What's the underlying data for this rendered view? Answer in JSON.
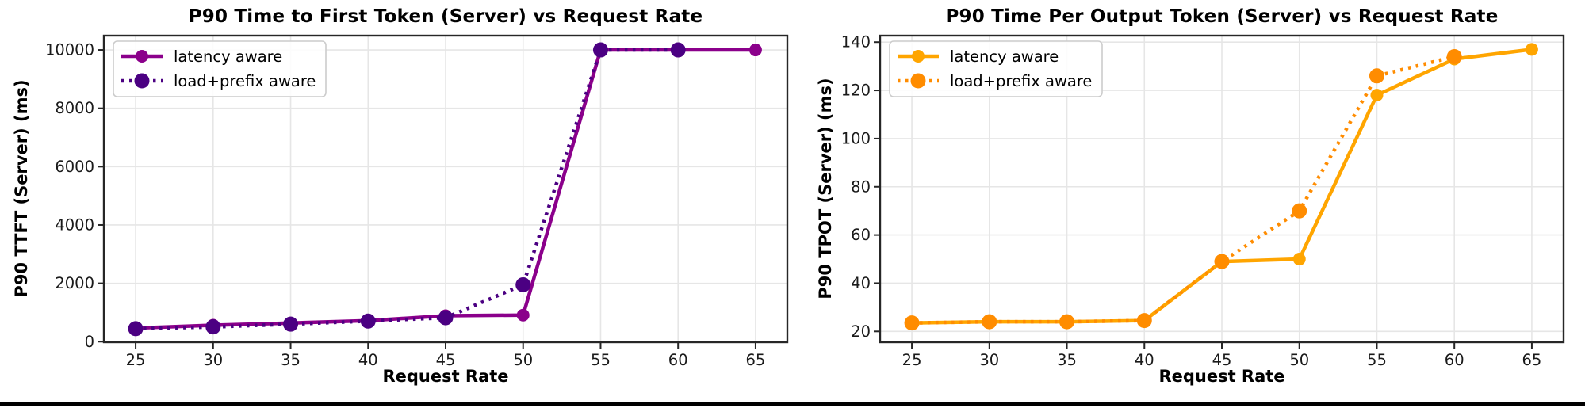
{
  "page": {
    "background": "#ffffff",
    "bottom_rule_color": "#000000"
  },
  "chart_data": [
    {
      "type": "line",
      "title": "P90 Time to First Token (Server) vs Request Rate",
      "xlabel": "Request Rate",
      "ylabel": "P90 TTFT (Server) (ms)",
      "x_ticks": [
        25,
        30,
        35,
        40,
        45,
        50,
        55,
        60,
        65
      ],
      "y_ticks": [
        0,
        2000,
        4000,
        6000,
        8000,
        10000
      ],
      "xlim": [
        22.95,
        67.05
      ],
      "ylim": [
        -20,
        10490
      ],
      "grid": true,
      "legend_position": "upper-left",
      "series": [
        {
          "name": "latency aware",
          "style": "solid",
          "marker": "circle",
          "color": "#8B008B",
          "x": [
            25,
            30,
            35,
            40,
            45,
            50,
            55,
            60,
            65
          ],
          "y": [
            465,
            565,
            640,
            720,
            890,
            910,
            10000,
            10000,
            10000
          ]
        },
        {
          "name": "load+prefix aware",
          "style": "dotted",
          "marker": "circle",
          "color": "#4B0082",
          "x": [
            25,
            30,
            35,
            40,
            45,
            50,
            55,
            60
          ],
          "y": [
            445,
            505,
            600,
            705,
            820,
            1950,
            10000,
            10000
          ]
        }
      ]
    },
    {
      "type": "line",
      "title": "P90 Time Per Output Token (Server) vs Request Rate",
      "xlabel": "Request Rate",
      "ylabel": "P90 TPOT (Server) (ms)",
      "x_ticks": [
        25,
        30,
        35,
        40,
        45,
        50,
        55,
        60,
        65
      ],
      "y_ticks": [
        20,
        40,
        60,
        80,
        100,
        120,
        140
      ],
      "xlim": [
        22.95,
        67.05
      ],
      "ylim": [
        15.5,
        142.7
      ],
      "grid": true,
      "legend_position": "upper-left",
      "series": [
        {
          "name": "latency aware",
          "style": "solid",
          "marker": "circle",
          "color": "#FFA500",
          "x": [
            25,
            30,
            35,
            40,
            45,
            50,
            55,
            60,
            65
          ],
          "y": [
            23.5,
            24,
            24,
            24.5,
            49,
            50,
            118,
            133,
            137
          ]
        },
        {
          "name": "load+prefix aware",
          "style": "dotted",
          "marker": "circle",
          "color": "#FF8C00",
          "x": [
            25,
            30,
            35,
            40,
            45,
            50,
            55,
            60
          ],
          "y": [
            23.5,
            24,
            24,
            24.5,
            49,
            70,
            126,
            134
          ]
        }
      ]
    }
  ],
  "style": {
    "grid_color": "#e6e6e6",
    "spine_color": "#262626",
    "tick_label_color": "#1a1a1a",
    "legend_border_color": "#cccccc",
    "legend_bg_color": "#ffffff"
  }
}
